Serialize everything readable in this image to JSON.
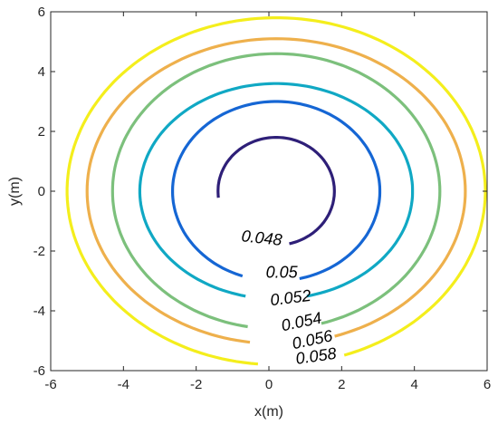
{
  "chart_data": {
    "type": "contour",
    "title": "",
    "xlabel": "x(m)",
    "ylabel": "y(m)",
    "xlim": [
      -6,
      6
    ],
    "ylim": [
      -6,
      6
    ],
    "xticks": [
      -6,
      -4,
      -2,
      0,
      2,
      4,
      6
    ],
    "yticks": [
      -6,
      -4,
      -2,
      0,
      2,
      4,
      6
    ],
    "xtick_labels": [
      "-6",
      "-4",
      "-2",
      "0",
      "2",
      "4",
      "6"
    ],
    "ytick_labels": [
      "-6",
      "-4",
      "-2",
      "0",
      "2",
      "4",
      "6"
    ],
    "grid": false,
    "box": true,
    "contours": [
      {
        "level": 0.048,
        "label": "0.048",
        "color": "#2e1f78",
        "center": [
          0.2,
          0.0
        ],
        "rx": 1.6,
        "ry": 1.8,
        "gap_start_deg": 283,
        "gap_end_deg": 188,
        "label_at": [
          -0.2,
          -1.6
        ],
        "label_rotation": 6
      },
      {
        "level": 0.05,
        "label": "0.05",
        "color": "#1566d4",
        "center": [
          0.2,
          0.0
        ],
        "rx": 2.85,
        "ry": 3.0,
        "gap_start_deg": 283,
        "gap_end_deg": 252,
        "label_at": [
          0.35,
          -2.75
        ],
        "label_rotation": 0
      },
      {
        "level": 0.052,
        "label": "0.052",
        "color": "#10a8c4",
        "center": [
          0.2,
          0.0
        ],
        "rx": 3.75,
        "ry": 3.6,
        "gap_start_deg": 283,
        "gap_end_deg": 257,
        "label_at": [
          0.6,
          -3.6
        ],
        "label_rotation": 353
      },
      {
        "level": 0.054,
        "label": "0.054",
        "color": "#7cc07c",
        "center": [
          0.2,
          0.0
        ],
        "rx": 4.5,
        "ry": 4.6,
        "gap_start_deg": 286,
        "gap_end_deg": 260,
        "label_at": [
          0.9,
          -4.4
        ],
        "label_rotation": 348
      },
      {
        "level": 0.056,
        "label": "0.056",
        "color": "#eeb04c",
        "center": [
          0.2,
          0.0
        ],
        "rx": 5.2,
        "ry": 5.1,
        "gap_start_deg": 288,
        "gap_end_deg": 263,
        "label_at": [
          1.2,
          -5.0
        ],
        "label_rotation": 348
      },
      {
        "level": 0.058,
        "label": "0.058",
        "color": "#f4ee1c",
        "center": [
          0.2,
          0.0
        ],
        "rx": 5.75,
        "ry": 5.8,
        "gap_start_deg": 289,
        "gap_end_deg": 266,
        "label_at": [
          1.3,
          -5.55
        ],
        "label_rotation": 352
      }
    ]
  }
}
